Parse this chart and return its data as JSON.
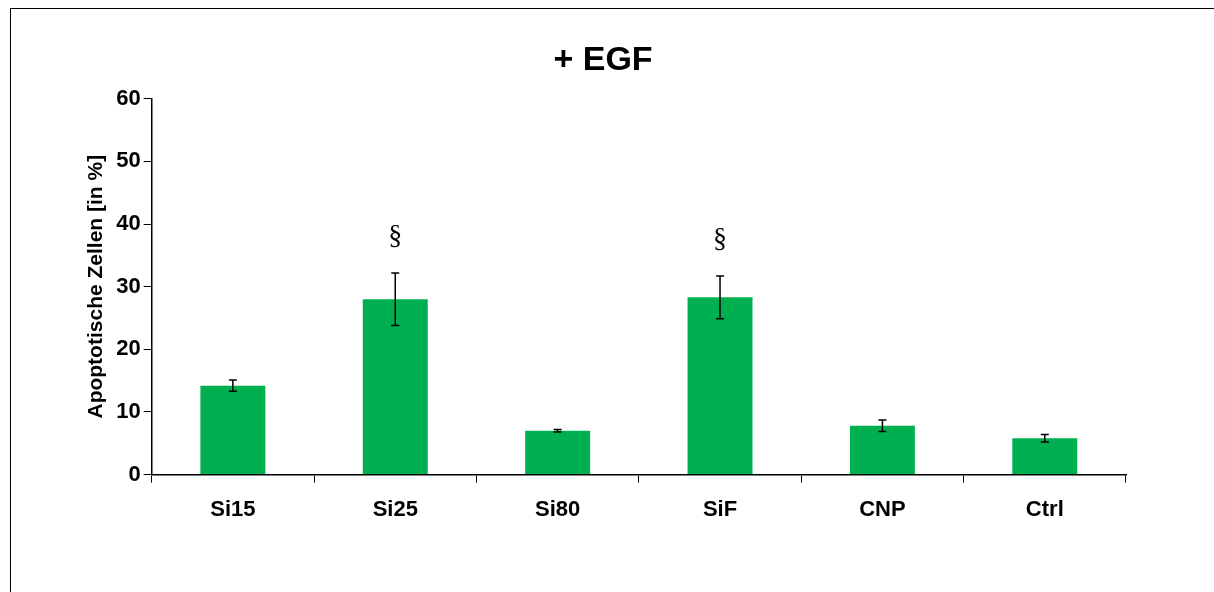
{
  "chart_data": {
    "type": "bar",
    "title": "+ EGF",
    "ylabel": "Apoptotische Zellen [in %]",
    "categories": [
      "Si15",
      "Si25",
      "Si80",
      "SiF",
      "CNP",
      "Ctrl"
    ],
    "values": [
      14.2,
      28.0,
      7.0,
      28.3,
      7.8,
      5.8
    ],
    "errors": [
      0.9,
      4.2,
      0.2,
      3.4,
      0.9,
      0.6
    ],
    "color": "#00b050",
    "ylim": [
      0,
      60
    ],
    "yticks": [
      0,
      10,
      20,
      30,
      40,
      50,
      60
    ],
    "grid": false,
    "legend": false,
    "annotations": [
      {
        "text": "§",
        "x": "Si25",
        "y": 32.2
      },
      {
        "text": "§",
        "x": "SiF",
        "y": 31.7
      }
    ]
  }
}
